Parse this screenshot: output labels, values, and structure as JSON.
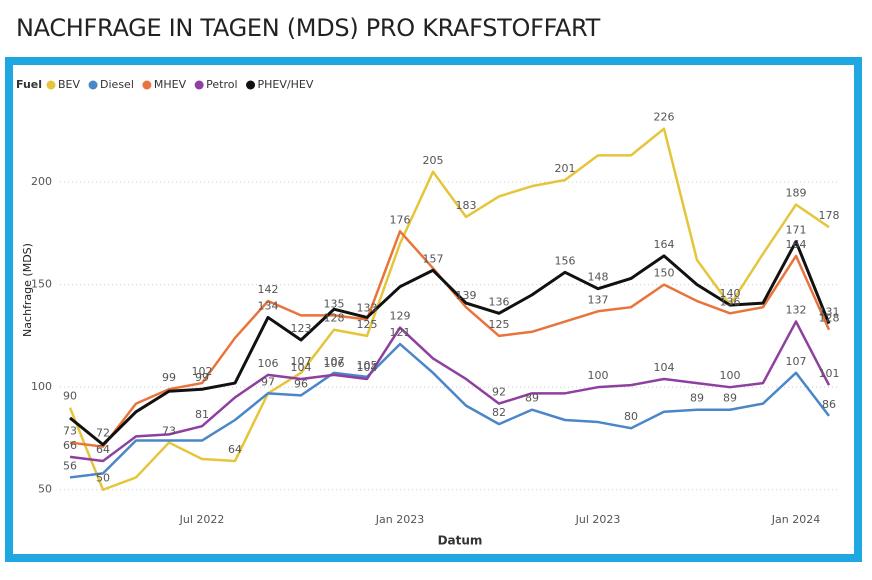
{
  "chart_data": {
    "type": "line",
    "title": "NACHFRAGE IN TAGEN (MDS) PRO KRAFSTOFFART",
    "legend_title": "Fuel",
    "legend": "top-left",
    "x_label": "Datum",
    "y_label": "Nachfrage (MDS)",
    "x": [
      "2022-03",
      "2022-04",
      "2022-05",
      "2022-06",
      "2022-07",
      "2022-08",
      "2022-09",
      "2022-10",
      "2022-11",
      "2022-12",
      "2023-01",
      "2023-02",
      "2023-03",
      "2023-04",
      "2023-05",
      "2023-06",
      "2023-07",
      "2023-08",
      "2023-09",
      "2023-10",
      "2023-11",
      "2023-12",
      "2024-01",
      "2024-02"
    ],
    "xlim": [
      "2022-03",
      "2024-02"
    ],
    "xticks": [
      {
        "value": "2022-07",
        "label": "Jul 2022"
      },
      {
        "value": "2023-01",
        "label": "Jan 2023"
      },
      {
        "value": "2023-07",
        "label": "Jul 2023"
      },
      {
        "value": "2024-01",
        "label": "Jan 2024"
      }
    ],
    "ylim": [
      45,
      240
    ],
    "yticks": [
      50,
      100,
      150,
      200
    ],
    "grid": true,
    "series": [
      {
        "name": "BEV",
        "color": "#e5c53a",
        "values": [
          90,
          50,
          56,
          73,
          65,
          64,
          97,
          107,
          128,
          125,
          170,
          205,
          183,
          193,
          198,
          201,
          213,
          213,
          226,
          162,
          140,
          165,
          189,
          178
        ],
        "value_labels": [
          "90",
          "50",
          null,
          "73",
          null,
          "64",
          "97",
          "107",
          "128",
          "125",
          null,
          "205",
          "183",
          null,
          null,
          "201",
          null,
          null,
          "226",
          null,
          "140",
          null,
          "189",
          "178"
        ]
      },
      {
        "name": "Diesel",
        "color": "#4a86c8",
        "values": [
          56,
          58,
          74,
          74,
          74,
          84,
          97,
          96,
          107,
          105,
          121,
          107,
          91,
          82,
          89,
          84,
          83,
          80,
          88,
          89,
          89,
          92,
          107,
          86
        ],
        "value_labels": [
          "56",
          null,
          null,
          null,
          null,
          null,
          null,
          "96",
          "107",
          "105",
          "121",
          null,
          null,
          "82",
          "89",
          null,
          null,
          "80",
          null,
          "89",
          "89",
          null,
          "107",
          "86"
        ]
      },
      {
        "name": "MHEV",
        "color": "#e8743b",
        "values": [
          73,
          71,
          92,
          99,
          102,
          124,
          142,
          135,
          135,
          133,
          176,
          158,
          139,
          125,
          127,
          132,
          137,
          139,
          150,
          142,
          136,
          139,
          164,
          128
        ],
        "value_labels": [
          "73",
          null,
          null,
          "99",
          "102",
          null,
          "142",
          null,
          "135",
          "133",
          "176",
          null,
          "139",
          "125",
          null,
          null,
          "137",
          null,
          "150",
          null,
          "136",
          null,
          "164",
          "128"
        ]
      },
      {
        "name": "Petrol",
        "color": "#8e3fa0",
        "values": [
          66,
          64,
          76,
          77,
          81,
          95,
          106,
          104,
          106,
          104,
          129,
          114,
          104,
          92,
          97,
          97,
          100,
          101,
          104,
          102,
          100,
          102,
          132,
          101
        ],
        "value_labels": [
          "66",
          "64",
          null,
          null,
          "81",
          null,
          "106",
          "104",
          "106",
          "104",
          "129",
          null,
          null,
          "92",
          null,
          null,
          "100",
          null,
          "104",
          null,
          "100",
          null,
          "132",
          "101"
        ]
      },
      {
        "name": "PHEV/HEV",
        "color": "#111111",
        "values": [
          85,
          72,
          88,
          98,
          99,
          102,
          134,
          123,
          138,
          134,
          149,
          157,
          141,
          136,
          145,
          156,
          148,
          153,
          164,
          150,
          140,
          141,
          171,
          131
        ],
        "value_labels": [
          null,
          "72",
          null,
          null,
          "99",
          null,
          "134",
          "123",
          null,
          null,
          null,
          "157",
          null,
          "136",
          null,
          "156",
          "148",
          null,
          "164",
          null,
          null,
          null,
          "171",
          "131"
        ]
      }
    ]
  }
}
